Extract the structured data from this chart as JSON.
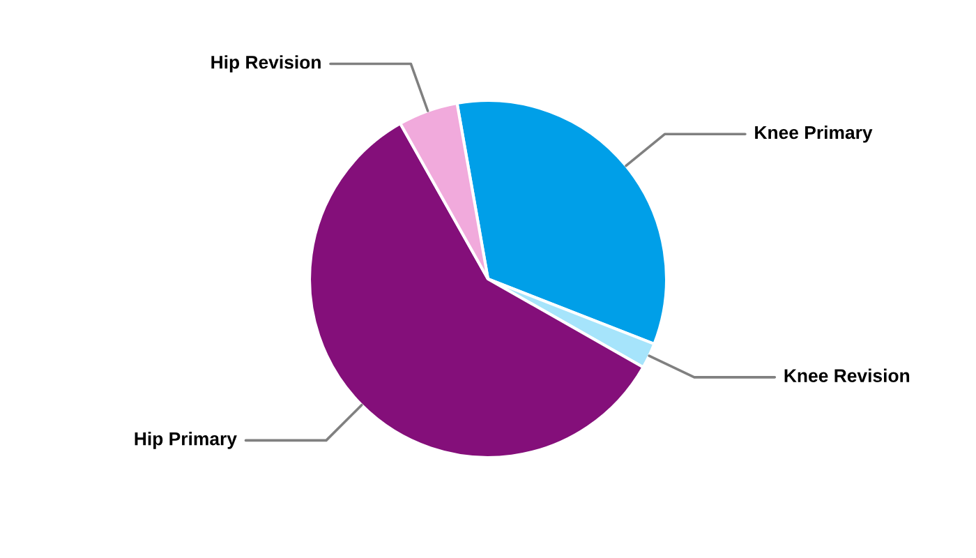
{
  "chart_data": {
    "type": "pie",
    "categories": [
      "Knee Primary",
      "Knee Revision",
      "Hip Primary",
      "Hip Revision"
    ],
    "values": [
      33.7,
      2.3,
      58.6,
      5.4
    ],
    "colors": [
      "#009fe8",
      "#a6e4fb",
      "#840f7a",
      "#f1aadc"
    ]
  }
}
